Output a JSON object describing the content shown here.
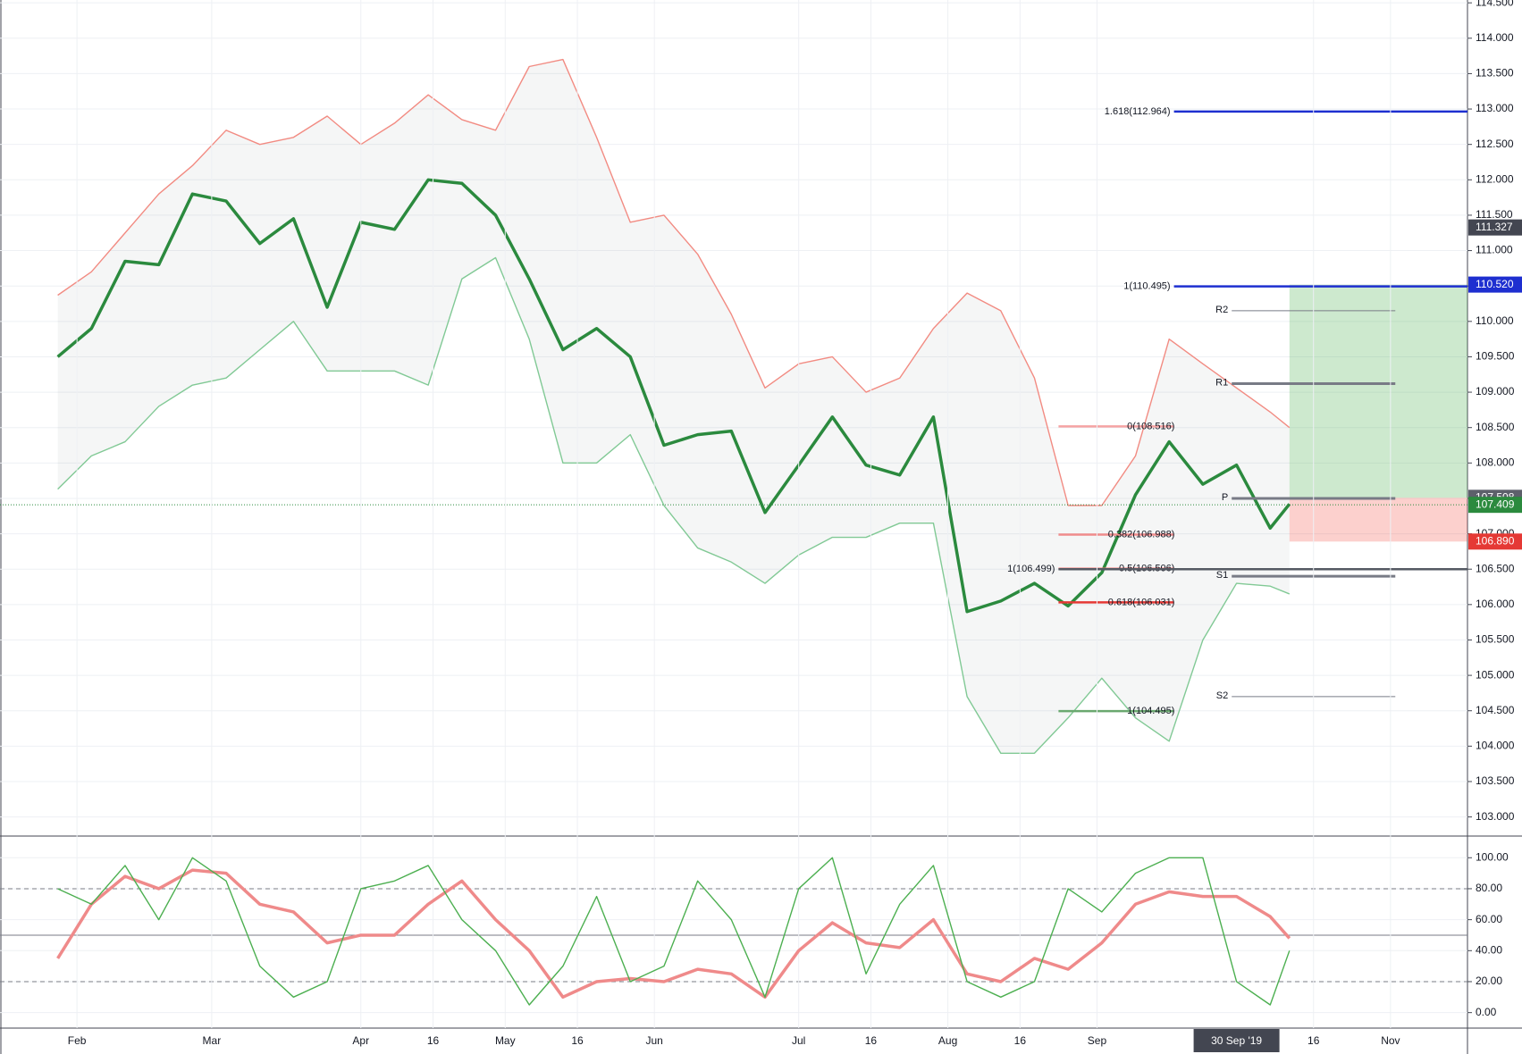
{
  "chart_data": [
    {
      "type": "line",
      "x": [
        "2019-01-28",
        "2019-02-04",
        "2019-02-11",
        "2019-02-18",
        "2019-02-25",
        "2019-03-04",
        "2019-03-11",
        "2019-03-18",
        "2019-03-25",
        "2019-04-01",
        "2019-04-08",
        "2019-04-15",
        "2019-04-22",
        "2019-04-29",
        "2019-05-06",
        "2019-05-13",
        "2019-05-20",
        "2019-05-27",
        "2019-06-03",
        "2019-06-10",
        "2019-06-17",
        "2019-06-24",
        "2019-07-01",
        "2019-07-08",
        "2019-07-15",
        "2019-07-22",
        "2019-07-29",
        "2019-08-05",
        "2019-08-12",
        "2019-08-19",
        "2019-08-26",
        "2019-09-02",
        "2019-09-09",
        "2019-09-16",
        "2019-09-23",
        "2019-09-30",
        "2019-10-07",
        "2019-10-11"
      ],
      "series": [
        {
          "color": "#2b8a3e",
          "values": [
            109.5,
            109.9,
            110.85,
            110.8,
            111.8,
            111.7,
            111.1,
            111.45,
            110.2,
            111.4,
            111.3,
            112.0,
            111.95,
            111.5,
            110.6,
            109.6,
            109.9,
            109.5,
            108.25,
            108.4,
            108.45,
            107.3,
            107.97,
            108.65,
            107.97,
            107.83,
            108.65,
            105.9,
            106.05,
            106.3,
            105.98,
            106.45,
            107.55,
            108.3,
            107.7,
            107.97,
            107.08,
            107.42
          ]
        },
        {
          "color": "#f28b82",
          "values": [
            110.37,
            110.7,
            111.25,
            111.8,
            112.2,
            112.7,
            112.5,
            112.6,
            112.9,
            112.5,
            112.8,
            113.2,
            112.85,
            112.7,
            113.6,
            113.7,
            112.6,
            111.4,
            111.5,
            110.95,
            110.1,
            109.06,
            109.4,
            109.5,
            109.0,
            109.2,
            109.9,
            110.4,
            110.15,
            109.2,
            107.4,
            107.4,
            108.1,
            109.75,
            109.4,
            109.06,
            108.72,
            108.5
          ]
        },
        {
          "color": "#81c995",
          "values": [
            107.63,
            108.1,
            108.3,
            108.8,
            109.1,
            109.2,
            109.6,
            110.0,
            109.3,
            109.3,
            109.3,
            109.1,
            110.6,
            110.9,
            109.75,
            108.0,
            108.0,
            108.4,
            107.4,
            106.8,
            106.6,
            106.3,
            106.7,
            106.95,
            106.95,
            107.15,
            107.15,
            104.7,
            103.9,
            103.9,
            104.4,
            104.96,
            104.4,
            104.07,
            105.5,
            106.3,
            106.26,
            106.15
          ]
        }
      ],
      "xlim": [
        "2019-01-16",
        "2019-11-17"
      ],
      "ylim": [
        102.73,
        114.54
      ],
      "yticks": [
        {
          "value": 103,
          "label": "103.000"
        },
        {
          "value": 103.5,
          "label": "103.500"
        },
        {
          "value": 104,
          "label": "104.000"
        },
        {
          "value": 104.5,
          "label": "104.500"
        },
        {
          "value": 105,
          "label": "105.000"
        },
        {
          "value": 105.5,
          "label": "105.500"
        },
        {
          "value": 106,
          "label": "106.000"
        },
        {
          "value": 106.5,
          "label": "106.500"
        },
        {
          "value": 107,
          "label": "107.000"
        },
        {
          "value": 107.5,
          "label": "107.500"
        },
        {
          "value": 108,
          "label": "108.000"
        },
        {
          "value": 108.5,
          "label": "108.500"
        },
        {
          "value": 109,
          "label": "109.000"
        },
        {
          "value": 109.5,
          "label": "109.500"
        },
        {
          "value": 110,
          "label": "110.000"
        },
        {
          "value": 110.5,
          "label": "110.500"
        },
        {
          "value": 111,
          "label": "111.000"
        },
        {
          "value": 111.5,
          "label": "111.500"
        },
        {
          "value": 112,
          "label": "112.000"
        },
        {
          "value": 112.5,
          "label": "112.500"
        },
        {
          "value": 113,
          "label": "113.000"
        },
        {
          "value": 113.5,
          "label": "113.500"
        },
        {
          "value": 114,
          "label": "114.000"
        },
        {
          "value": 114.5,
          "label": "114.500"
        }
      ],
      "grid": true,
      "fib_levels": [
        {
          "label": "1.618(112.964)",
          "value": 112.964,
          "color": "#1e2fd0",
          "from": "2019-09-17",
          "to": "2019-11-17"
        },
        {
          "label": "1(110.495)",
          "value": 110.495,
          "color": "#1e2fd0",
          "from": "2019-09-17",
          "to": "2019-11-17"
        },
        {
          "label": "0(108.516)",
          "value": 108.516,
          "color": "#f5a3a3",
          "from": "2019-08-24",
          "to": "2019-09-17"
        },
        {
          "label": "0.382(106.988)",
          "value": 106.988,
          "color": "#f08c8c",
          "from": "2019-08-24",
          "to": "2019-09-17"
        },
        {
          "label": "0.5(106.506)",
          "value": 106.506,
          "color": "#ef6f6f",
          "from": "2019-08-24",
          "to": "2019-09-17"
        },
        {
          "label": "0.618(106.031)",
          "value": 106.031,
          "color": "#e53935",
          "from": "2019-08-24",
          "to": "2019-09-17"
        },
        {
          "label": "1(104.495)",
          "value": 104.495,
          "color": "#6aa86f",
          "from": "2019-08-24",
          "to": "2019-09-17"
        },
        {
          "label": "1(106.499)",
          "value": 106.499,
          "color": "#555a63",
          "from": "2019-08-24",
          "to": "2019-11-17"
        }
      ],
      "pivots": [
        {
          "label": "R2",
          "value": 110.15
        },
        {
          "label": "R1",
          "value": 109.12
        },
        {
          "label": "P",
          "value": 107.5
        },
        {
          "label": "S1",
          "value": 106.4
        },
        {
          "label": "S2",
          "value": 104.7
        }
      ],
      "pivot_range": [
        "2019-09-29",
        "2019-11-02"
      ],
      "position_from": "2019-10-11",
      "price_labels": [
        {
          "label": "111.327",
          "value": 111.327,
          "color": "#434651"
        },
        {
          "label": "110.520",
          "value": 110.52,
          "color": "#1e2fd0"
        },
        {
          "label": "107.508",
          "value": 107.508,
          "color": "#5d606b"
        },
        {
          "label": "107.409",
          "value": 107.409,
          "color": "#2b8a3e"
        },
        {
          "label": "106.890",
          "value": 106.89,
          "color": "#e53935"
        }
      ]
    },
    {
      "type": "line",
      "x": [
        "2019-01-28",
        "2019-02-04",
        "2019-02-11",
        "2019-02-18",
        "2019-02-25",
        "2019-03-04",
        "2019-03-11",
        "2019-03-18",
        "2019-03-25",
        "2019-04-01",
        "2019-04-08",
        "2019-04-15",
        "2019-04-22",
        "2019-04-29",
        "2019-05-06",
        "2019-05-13",
        "2019-05-20",
        "2019-05-27",
        "2019-06-03",
        "2019-06-10",
        "2019-06-17",
        "2019-06-24",
        "2019-07-01",
        "2019-07-08",
        "2019-07-15",
        "2019-07-22",
        "2019-07-29",
        "2019-08-05",
        "2019-08-12",
        "2019-08-19",
        "2019-08-26",
        "2019-09-02",
        "2019-09-09",
        "2019-09-16",
        "2019-09-23",
        "2019-09-30",
        "2019-10-07",
        "2019-10-11"
      ],
      "series": [
        {
          "color": "#ef8a8a",
          "values": [
            35,
            70,
            88,
            80,
            92,
            90,
            70,
            65,
            45,
            50,
            50,
            70,
            85,
            60,
            40,
            10,
            20,
            22,
            20,
            28,
            25,
            10,
            40,
            58,
            45,
            42,
            60,
            25,
            20,
            35,
            28,
            45,
            70,
            78,
            75,
            75,
            62,
            48
          ]
        },
        {
          "color": "#4caf50",
          "values": [
            80,
            70,
            95,
            60,
            100,
            85,
            30,
            10,
            20,
            80,
            85,
            95,
            60,
            40,
            5,
            30,
            75,
            20,
            30,
            85,
            60,
            10,
            80,
            100,
            25,
            70,
            95,
            20,
            10,
            20,
            80,
            65,
            90,
            100,
            100,
            20,
            5,
            40
          ]
        }
      ],
      "xlim": [
        "2019-01-16",
        "2019-11-17"
      ],
      "ylim": [
        -10,
        114
      ],
      "yticks": [
        {
          "value": 0,
          "label": "0.00"
        },
        {
          "value": 20,
          "label": "20.00"
        },
        {
          "value": 40,
          "label": "40.00"
        },
        {
          "value": 60,
          "label": "60.00"
        },
        {
          "value": 80,
          "label": "80.00"
        },
        {
          "value": 100,
          "label": "100.00"
        }
      ],
      "levels": [
        80,
        50,
        20
      ],
      "xticks": [
        {
          "value": "2019-02-01",
          "label": "Feb"
        },
        {
          "value": "2019-03-01",
          "label": "Mar"
        },
        {
          "value": "2019-04-01",
          "label": "Apr"
        },
        {
          "value": "2019-04-16",
          "label": "16"
        },
        {
          "value": "2019-05-01",
          "label": "May"
        },
        {
          "value": "2019-05-16",
          "label": "16"
        },
        {
          "value": "2019-06-01",
          "label": "Jun"
        },
        {
          "value": "2019-07-01",
          "label": "Jul"
        },
        {
          "value": "2019-07-16",
          "label": "16"
        },
        {
          "value": "2019-08-01",
          "label": "Aug"
        },
        {
          "value": "2019-08-16",
          "label": "16"
        },
        {
          "value": "2019-09-01",
          "label": "Sep"
        },
        {
          "value": "2019-10-16",
          "label": "16"
        },
        {
          "value": "2019-11-01",
          "label": "Nov"
        }
      ],
      "crosshair": {
        "x": "2019-09-30",
        "label": "30 Sep '19"
      }
    }
  ]
}
